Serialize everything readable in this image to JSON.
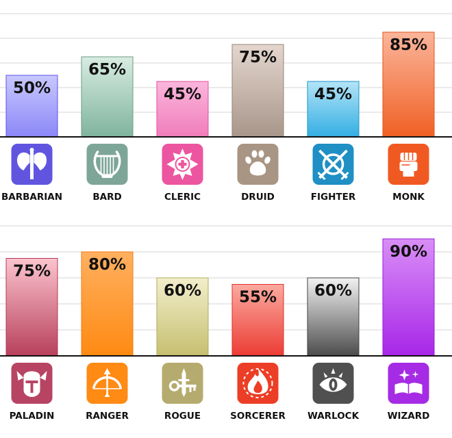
{
  "chart_data": [
    {
      "type": "bar",
      "categories": [
        "BARBARIAN",
        "BARD",
        "CLERIC",
        "DRUID",
        "FIGHTER",
        "MONK"
      ],
      "values": [
        50,
        65,
        45,
        75,
        45,
        85
      ],
      "value_labels": [
        "50%",
        "65%",
        "45%",
        "75%",
        "45%",
        "85%"
      ],
      "icons": [
        "double-axe-icon",
        "lyre-icon",
        "holy-cross-icon",
        "paw-icon",
        "crossed-swords-shield-icon",
        "fist-icon"
      ],
      "colors": {
        "top": [
          "#c8c8ff",
          "#d8ece2",
          "#fbb6dc",
          "#e4d6ce",
          "#b3e4f7",
          "#fbb59b"
        ],
        "bottom": [
          "#8b87f7",
          "#7fb49e",
          "#f07dba",
          "#a8968a",
          "#33aee3",
          "#f06024"
        ],
        "border": [
          "#5c52e8",
          "#6d9a88",
          "#e050a0",
          "#988274",
          "#1e92c8",
          "#e45418"
        ],
        "icon_bg": [
          "#6155e0",
          "#7ea698",
          "#ec559f",
          "#a99583",
          "#1f8fc4",
          "#f05a22"
        ]
      },
      "ylim": [
        0,
        100
      ],
      "grid": true,
      "legend": "none"
    },
    {
      "type": "bar",
      "categories": [
        "PALADIN",
        "RANGER",
        "ROGUE",
        "SORCERER",
        "WARLOCK",
        "WIZARD"
      ],
      "values": [
        75,
        80,
        60,
        55,
        60,
        90
      ],
      "value_labels": [
        "75%",
        "80%",
        "60%",
        "55%",
        "60%",
        "90%"
      ],
      "icons": [
        "winged-helmet-icon",
        "bow-arrow-icon",
        "key-dagger-icon",
        "flame-icon",
        "eye-icon",
        "spellbook-icon"
      ],
      "colors": {
        "top": [
          "#fbc4ce",
          "#ffb060",
          "#f2eecb",
          "#fbaaa0",
          "#f2f2f2",
          "#d98ef7"
        ],
        "bottom": [
          "#b8405c",
          "#ff8a12",
          "#c6bf70",
          "#ec3c34",
          "#4c4c4c",
          "#a726e8"
        ],
        "border": [
          "#b03a58",
          "#f07a10",
          "#b0aa5c",
          "#dc3028",
          "#404040",
          "#9620d8"
        ],
        "icon_bg": [
          "#b84464",
          "#ff8a14",
          "#b6ab6e",
          "#ec3e26",
          "#505050",
          "#a52ce4"
        ]
      },
      "ylim": [
        0,
        100
      ],
      "grid": true,
      "legend": "none"
    }
  ]
}
